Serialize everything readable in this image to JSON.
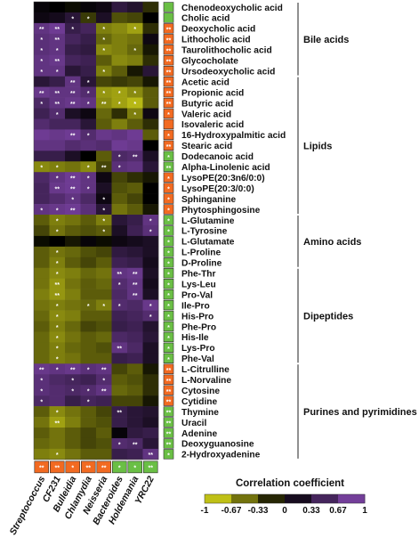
{
  "chart_data": {
    "type": "heatmap",
    "columns": [
      "Streptococcus",
      "CF231",
      "Bulleidia",
      "Chlamydia",
      "Neisseria",
      "Bacteroides",
      "Holdemania",
      "YRC22"
    ],
    "column_markers": [
      "up",
      "up",
      "up",
      "up",
      "up",
      "down",
      "down",
      "down"
    ],
    "column_marker_labels": [
      "**",
      "**",
      "*",
      "**",
      "**",
      "*",
      "*",
      "**"
    ],
    "rows": [
      {
        "name": "Chenodeoxycholic acid",
        "values": [
          0.05,
          0.0,
          -0.05,
          0.05,
          0.1,
          0.35,
          0.25,
          -0.2
        ],
        "stars": [
          "",
          "",
          "",
          "",
          "",
          "",
          "",
          ""
        ],
        "marker": "down",
        "mark": ""
      },
      {
        "name": "Cholic acid",
        "values": [
          0.1,
          0.15,
          0.3,
          -0.25,
          0.2,
          -0.35,
          -0.3,
          0.0
        ],
        "stars": [
          "",
          "",
          "*",
          "*",
          "",
          "",
          "",
          ""
        ],
        "marker": "down",
        "mark": ""
      },
      {
        "name": "Deoxycholic acid",
        "values": [
          0.7,
          0.8,
          0.4,
          0.5,
          -0.55,
          -0.6,
          -0.7,
          -0.2
        ],
        "stars": [
          "**",
          "**",
          "*",
          "",
          "*",
          "",
          "*",
          ""
        ],
        "marker": "up",
        "mark": "**"
      },
      {
        "name": "Lithocholic acid",
        "values": [
          0.65,
          0.7,
          0.5,
          0.4,
          -0.45,
          -0.55,
          -0.5,
          0.1
        ],
        "stars": [
          "*",
          "**",
          "",
          "",
          "*",
          "",
          "",
          ""
        ],
        "marker": "up",
        "mark": "**"
      },
      {
        "name": "Taurolithocholic acid",
        "values": [
          0.65,
          0.7,
          0.4,
          0.35,
          -0.6,
          -0.55,
          -0.45,
          -0.1
        ],
        "stars": [
          "*",
          "*",
          "",
          "",
          "*",
          "",
          "*",
          ""
        ],
        "marker": "up",
        "mark": "**"
      },
      {
        "name": "Glycocholate",
        "values": [
          0.7,
          0.75,
          0.5,
          0.45,
          -0.4,
          -0.6,
          -0.55,
          -0.2
        ],
        "stars": [
          "*",
          "**",
          "",
          "",
          "",
          "",
          "",
          ""
        ],
        "marker": "up",
        "mark": "**"
      },
      {
        "name": "Ursodeoxycholic acid",
        "values": [
          0.7,
          0.7,
          0.3,
          0.4,
          -0.55,
          -0.4,
          -0.1,
          0.3
        ],
        "stars": [
          "*",
          "*",
          "",
          "",
          "*",
          "",
          "",
          ""
        ],
        "marker": "up",
        "mark": "**"
      },
      {
        "name": "Acetic acid",
        "values": [
          0.3,
          0.4,
          0.7,
          0.3,
          -0.3,
          -0.25,
          -0.3,
          -0.1
        ],
        "stars": [
          "",
          "",
          "**",
          "*",
          "",
          "",
          "",
          ""
        ],
        "marker": "up",
        "mark": "**"
      },
      {
        "name": "Propionic acid",
        "values": [
          0.75,
          0.7,
          0.7,
          0.6,
          -0.65,
          -0.7,
          -0.6,
          -0.4
        ],
        "stars": [
          "**",
          "**",
          "**",
          "*",
          "*",
          "*",
          "*",
          ""
        ],
        "marker": "up",
        "mark": "**"
      },
      {
        "name": "Butyric acid",
        "values": [
          0.55,
          0.7,
          0.75,
          0.7,
          -0.6,
          -0.7,
          -0.8,
          -0.4
        ],
        "stars": [
          "*",
          "**",
          "**",
          "*",
          "**",
          "*",
          "*",
          ""
        ],
        "marker": "up",
        "mark": "**"
      },
      {
        "name": "Valeric acid",
        "values": [
          0.45,
          0.6,
          0.2,
          0.1,
          -0.45,
          -0.2,
          -0.55,
          0.1
        ],
        "stars": [
          "",
          "*",
          "",
          "",
          "",
          "",
          "*",
          ""
        ],
        "marker": "up",
        "mark": "*"
      },
      {
        "name": "Isovaleric acid",
        "values": [
          0.6,
          0.5,
          0.5,
          0.3,
          -0.4,
          -0.55,
          -0.4,
          -0.2
        ],
        "stars": [
          "",
          "",
          "",
          "",
          "",
          "",
          "",
          ""
        ],
        "marker": "up",
        "mark": ""
      },
      {
        "name": "16-Hydroxypalmitic acid",
        "values": [
          0.8,
          0.75,
          0.8,
          0.6,
          0.75,
          0.7,
          0.8,
          -0.4
        ],
        "stars": [
          "",
          "",
          "**",
          "*",
          "",
          "",
          "",
          ""
        ],
        "marker": "up",
        "mark": "*"
      },
      {
        "name": "Stearic acid",
        "values": [
          0.7,
          0.7,
          0.6,
          0.65,
          0.6,
          0.8,
          0.75,
          0.0
        ],
        "stars": [
          "",
          "",
          "",
          "",
          "",
          "",
          "",
          ""
        ],
        "marker": "up",
        "mark": "**"
      },
      {
        "name": "Dodecanoic acid",
        "values": [
          0.4,
          0.4,
          0.2,
          0.0,
          -0.4,
          0.55,
          0.6,
          0.2
        ],
        "stars": [
          "",
          "",
          "",
          "",
          "",
          "*",
          "**",
          ""
        ],
        "marker": "down",
        "mark": "*"
      },
      {
        "name": "Alpha-Linolenic acid",
        "values": [
          -0.6,
          -0.55,
          -0.5,
          -0.6,
          -0.3,
          0.65,
          0.7,
          0.3
        ],
        "stars": [
          "*",
          "*",
          "",
          "*",
          "**",
          "*",
          "",
          ""
        ],
        "marker": "down",
        "mark": "**"
      },
      {
        "name": "LysoPE(20:3n6/0:0)",
        "values": [
          0.55,
          0.7,
          0.8,
          0.7,
          0.1,
          -0.3,
          -0.2,
          -0.1
        ],
        "stars": [
          "",
          "*",
          "**",
          "*",
          "",
          "",
          "",
          ""
        ],
        "marker": "up",
        "mark": "*"
      },
      {
        "name": "LysoPE(20:3/0:0)",
        "values": [
          0.5,
          0.75,
          0.8,
          0.7,
          0.2,
          -0.35,
          -0.4,
          0.0
        ],
        "stars": [
          "",
          "**",
          "**",
          "*",
          "",
          "",
          "",
          ""
        ],
        "marker": "up",
        "mark": "*"
      },
      {
        "name": "Sphinganine",
        "values": [
          0.5,
          0.6,
          0.7,
          0.55,
          0.1,
          -0.4,
          -0.3,
          0.0
        ],
        "stars": [
          "",
          "",
          "*",
          "",
          "*",
          "",
          "",
          ""
        ],
        "marker": "up",
        "mark": "*"
      },
      {
        "name": "Phytosphingosine",
        "values": [
          0.7,
          0.75,
          0.8,
          0.65,
          0.3,
          -0.5,
          -0.4,
          -0.1
        ],
        "stars": [
          "*",
          "*",
          "**",
          "",
          "*",
          "",
          "",
          ""
        ],
        "marker": "up",
        "mark": "*"
      },
      {
        "name": "L-Glutamine",
        "values": [
          -0.4,
          -0.55,
          -0.5,
          -0.4,
          -0.55,
          0.3,
          0.4,
          0.7
        ],
        "stars": [
          "",
          "*",
          "",
          "",
          "*",
          "",
          "",
          "*"
        ],
        "marker": "down",
        "mark": "*"
      },
      {
        "name": "L-Tyrosine",
        "values": [
          -0.3,
          -0.5,
          -0.4,
          -0.35,
          -0.4,
          0.2,
          0.45,
          0.65
        ],
        "stars": [
          "",
          "*",
          "",
          "",
          "*",
          "",
          "",
          "*"
        ],
        "marker": "down",
        "mark": "*"
      },
      {
        "name": "L-Glutamate",
        "values": [
          -0.05,
          0.0,
          -0.1,
          0.05,
          -0.05,
          0.1,
          0.15,
          0.2
        ],
        "stars": [
          "",
          "",
          "",
          "",
          "",
          "",
          "",
          ""
        ],
        "marker": "down",
        "mark": "*"
      },
      {
        "name": "L-Proline",
        "values": [
          -0.4,
          -0.5,
          -0.45,
          -0.35,
          -0.3,
          0.35,
          0.3,
          0.2
        ],
        "stars": [
          "",
          "*",
          "",
          "",
          "",
          "",
          "",
          ""
        ],
        "marker": "down",
        "mark": "*"
      },
      {
        "name": "D-Proline",
        "values": [
          -0.4,
          -0.55,
          -0.4,
          -0.3,
          -0.4,
          0.45,
          0.4,
          0.15
        ],
        "stars": [
          "",
          "*",
          "",
          "",
          "",
          "",
          "",
          ""
        ],
        "marker": "down",
        "mark": "*"
      },
      {
        "name": "Phe-Thr",
        "values": [
          -0.5,
          -0.6,
          -0.55,
          -0.45,
          -0.5,
          0.7,
          0.75,
          0.2
        ],
        "stars": [
          "",
          "*",
          "",
          "",
          "",
          "**",
          "**",
          ""
        ],
        "marker": "down",
        "mark": "*"
      },
      {
        "name": "Lys-Leu",
        "values": [
          -0.5,
          -0.65,
          -0.5,
          -0.4,
          -0.45,
          0.6,
          0.7,
          0.15
        ],
        "stars": [
          "",
          "**",
          "",
          "",
          "",
          "*",
          "**",
          ""
        ],
        "marker": "down",
        "mark": "*"
      },
      {
        "name": "Pro-Val",
        "values": [
          -0.55,
          -0.65,
          -0.55,
          -0.4,
          -0.4,
          0.55,
          0.7,
          0.2
        ],
        "stars": [
          "",
          "**",
          "",
          "",
          "",
          "",
          "**",
          ""
        ],
        "marker": "down",
        "mark": "*"
      },
      {
        "name": "Ile-Pro",
        "values": [
          -0.5,
          -0.55,
          -0.5,
          -0.45,
          -0.55,
          0.6,
          0.55,
          0.75
        ],
        "stars": [
          "",
          "*",
          "",
          "*",
          "*",
          "*",
          "",
          "*"
        ],
        "marker": "down",
        "mark": "*"
      },
      {
        "name": "His-Pro",
        "values": [
          -0.45,
          -0.6,
          -0.55,
          -0.4,
          -0.4,
          0.45,
          0.5,
          0.6
        ],
        "stars": [
          "",
          "*",
          "",
          "",
          "",
          "",
          "",
          "*"
        ],
        "marker": "down",
        "mark": "*"
      },
      {
        "name": "Phe-Pro",
        "values": [
          -0.4,
          -0.55,
          -0.45,
          -0.3,
          -0.35,
          0.4,
          0.45,
          0.25
        ],
        "stars": [
          "",
          "*",
          "",
          "",
          "",
          "",
          "",
          ""
        ],
        "marker": "down",
        "mark": "*"
      },
      {
        "name": "His-Ile",
        "values": [
          -0.45,
          -0.6,
          -0.5,
          -0.4,
          -0.45,
          0.55,
          0.5,
          0.3
        ],
        "stars": [
          "",
          "*",
          "",
          "",
          "",
          "",
          "",
          ""
        ],
        "marker": "down",
        "mark": "*"
      },
      {
        "name": "Lys-Pro",
        "values": [
          -0.45,
          -0.55,
          -0.45,
          -0.4,
          -0.35,
          0.7,
          0.55,
          0.2
        ],
        "stars": [
          "",
          "*",
          "",
          "",
          "",
          "**",
          "",
          ""
        ],
        "marker": "down",
        "mark": "*"
      },
      {
        "name": "Phe-Val",
        "values": [
          -0.45,
          -0.55,
          -0.5,
          -0.4,
          -0.4,
          0.4,
          0.45,
          0.2
        ],
        "stars": [
          "",
          "*",
          "",
          "",
          "",
          "",
          "",
          ""
        ],
        "marker": "down",
        "mark": "*"
      },
      {
        "name": "L-Citrulline",
        "values": [
          0.75,
          0.7,
          0.75,
          0.65,
          0.7,
          -0.3,
          -0.4,
          -0.1
        ],
        "stars": [
          "**",
          "*",
          "**",
          "*",
          "**",
          "",
          "",
          ""
        ],
        "marker": "up",
        "mark": "**"
      },
      {
        "name": "L-Norvaline",
        "values": [
          0.65,
          0.55,
          0.5,
          0.45,
          0.6,
          -0.4,
          -0.35,
          -0.2
        ],
        "stars": [
          "*",
          "",
          "*",
          "",
          "*",
          "",
          "",
          ""
        ],
        "marker": "up",
        "mark": "**"
      },
      {
        "name": "Cytosine",
        "values": [
          0.65,
          0.6,
          0.55,
          0.6,
          0.7,
          -0.45,
          -0.4,
          -0.2
        ],
        "stars": [
          "*",
          "",
          "*",
          "*",
          "**",
          "",
          "",
          ""
        ],
        "marker": "up",
        "mark": "**"
      },
      {
        "name": "Cytidine",
        "values": [
          0.55,
          0.6,
          0.4,
          0.5,
          0.45,
          -0.3,
          -0.3,
          -0.1
        ],
        "stars": [
          "*",
          "",
          "",
          "*",
          "",
          "",
          "",
          ""
        ],
        "marker": "up",
        "mark": "**"
      },
      {
        "name": "Thymine",
        "values": [
          -0.4,
          -0.6,
          -0.5,
          -0.4,
          -0.3,
          0.4,
          0.3,
          0.25
        ],
        "stars": [
          "",
          "*",
          "",
          "",
          "",
          "**",
          "",
          ""
        ],
        "marker": "down",
        "mark": "**"
      },
      {
        "name": "Uracil",
        "values": [
          -0.5,
          -0.7,
          -0.55,
          -0.4,
          -0.35,
          0.4,
          0.3,
          0.2
        ],
        "stars": [
          "",
          "**",
          "",
          "",
          "",
          "",
          "",
          ""
        ],
        "marker": "down",
        "mark": "**"
      },
      {
        "name": "Adenine",
        "values": [
          -0.4,
          -0.5,
          -0.4,
          -0.3,
          -0.4,
          0.05,
          0.35,
          0.4
        ],
        "stars": [
          "",
          "",
          "",
          "",
          "",
          "",
          "",
          ""
        ],
        "marker": "down",
        "mark": "**"
      },
      {
        "name": "Deoxyguanosine",
        "values": [
          -0.45,
          -0.5,
          -0.4,
          -0.3,
          -0.35,
          0.6,
          0.55,
          0.3
        ],
        "stars": [
          "",
          "",
          "",
          "",
          "",
          "*",
          "**",
          ""
        ],
        "marker": "down",
        "mark": "**"
      },
      {
        "name": "2-Hydroxyadenine",
        "values": [
          -0.55,
          -0.6,
          -0.5,
          -0.4,
          -0.4,
          0.4,
          0.45,
          0.7
        ],
        "stars": [
          "",
          "*",
          "",
          "",
          "",
          "",
          "",
          "**"
        ],
        "marker": "down",
        "mark": "*"
      }
    ],
    "groups": [
      {
        "label": "Bile acids",
        "from": 0,
        "to": 6
      },
      {
        "label": "Lipids",
        "from": 7,
        "to": 19
      },
      {
        "label": "Amino acids",
        "from": 20,
        "to": 24
      },
      {
        "label": "Dipeptides",
        "from": 25,
        "to": 33
      },
      {
        "label": "Purines and pyrimidines",
        "from": 34,
        "to": 42
      }
    ],
    "legend_title": "Correlation coefficient",
    "legend_ticks": [
      "-1",
      "-0.67",
      "-0.33",
      "0",
      "0.33",
      "0.67",
      "1"
    ],
    "value_range": [
      -1,
      1
    ],
    "colors": {
      "negative": "#e5e61a",
      "neutral": "#000000",
      "positive": "#8a4ab8",
      "marker_up": "#f26a21",
      "marker_down": "#6abf45"
    }
  }
}
